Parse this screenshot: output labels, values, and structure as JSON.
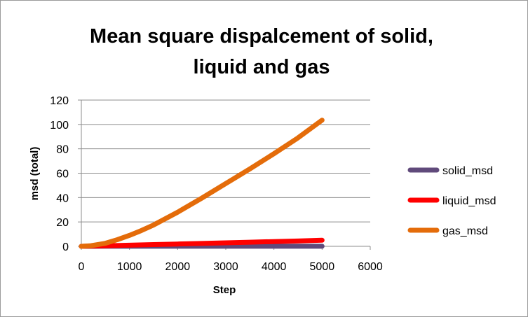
{
  "chart_data": {
    "type": "line",
    "title_lines": [
      "Mean square dispalcement of solid,",
      "liquid and gas"
    ],
    "xlabel": "Step",
    "ylabel": "msd (total)",
    "xlim": [
      0,
      6000
    ],
    "ylim": [
      0,
      120
    ],
    "xticks": [
      0,
      1000,
      2000,
      3000,
      4000,
      5000,
      6000
    ],
    "yticks": [
      0,
      20,
      40,
      60,
      80,
      100,
      120
    ],
    "grid": "horizontal",
    "legend_position": "right",
    "series": [
      {
        "name": "solid_msd",
        "color": "#604a7b",
        "x": [
          0,
          500,
          1000,
          1500,
          2000,
          2500,
          3000,
          3500,
          4000,
          4500,
          5000
        ],
        "y": [
          0,
          0.05,
          0.05,
          0.05,
          0.05,
          0.05,
          0.05,
          0.05,
          0.05,
          0.05,
          0.05
        ]
      },
      {
        "name": "liquid_msd",
        "color": "#ff0000",
        "x": [
          0,
          500,
          1000,
          1500,
          2000,
          2500,
          3000,
          3500,
          4000,
          4500,
          5000
        ],
        "y": [
          0,
          0.4,
          0.9,
          1.4,
          1.9,
          2.4,
          2.9,
          3.4,
          3.9,
          4.4,
          5.0
        ]
      },
      {
        "name": "gas_msd",
        "color": "#e46c0a",
        "x": [
          0,
          200,
          500,
          750,
          1000,
          1250,
          1500,
          2000,
          2500,
          3000,
          3500,
          4000,
          4500,
          5000
        ],
        "y": [
          0,
          0.5,
          2.5,
          5.5,
          9,
          13,
          17.5,
          28,
          39.5,
          51.5,
          63.5,
          76,
          89,
          103.5
        ]
      }
    ]
  }
}
